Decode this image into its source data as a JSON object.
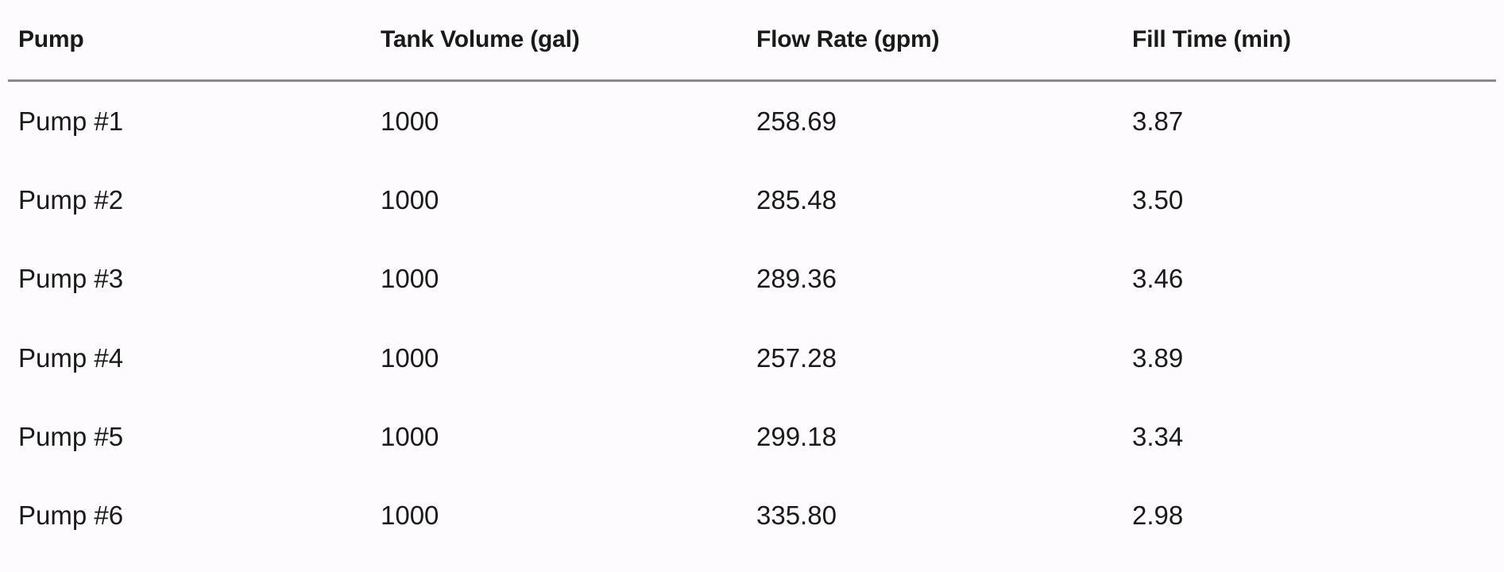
{
  "table": {
    "headers": [
      "Pump",
      "Tank Volume (gal)",
      "Flow Rate (gpm)",
      "Fill Time (min)"
    ],
    "rows": [
      [
        "Pump #1",
        "1000",
        "258.69",
        "3.87"
      ],
      [
        "Pump #2",
        "1000",
        "285.48",
        "3.50"
      ],
      [
        "Pump #3",
        "1000",
        "289.36",
        "3.46"
      ],
      [
        "Pump #4",
        "1000",
        "257.28",
        "3.89"
      ],
      [
        "Pump #5",
        "1000",
        "299.18",
        "3.34"
      ],
      [
        "Pump #6",
        "1000",
        "335.80",
        "2.98"
      ]
    ]
  }
}
